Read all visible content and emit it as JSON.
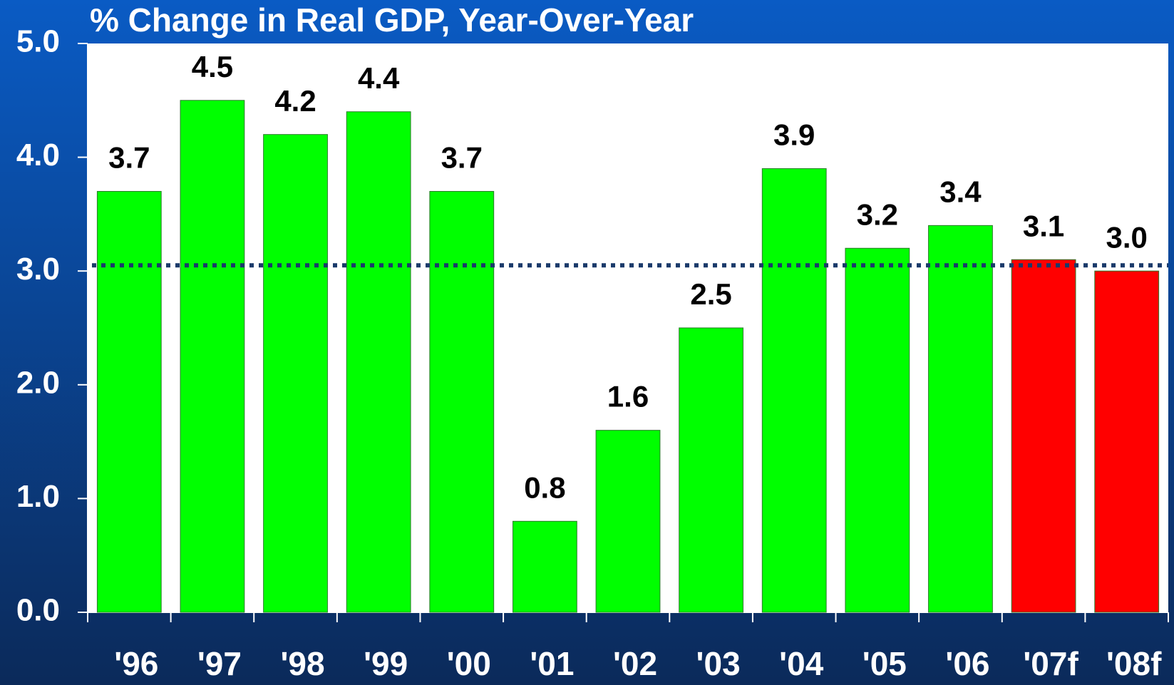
{
  "chart_data": {
    "type": "bar",
    "title": "% Change in Real GDP, Year-Over-Year",
    "categories": [
      "'96",
      "'97",
      "'98",
      "'99",
      "'00",
      "'01",
      "'02",
      "'03",
      "'04",
      "'05",
      "'06",
      "'07f",
      "'08f"
    ],
    "values": [
      3.7,
      4.5,
      4.2,
      4.4,
      3.7,
      0.8,
      1.6,
      2.5,
      3.9,
      3.2,
      3.4,
      3.1,
      3.0
    ],
    "value_labels": [
      "3.7",
      "4.5",
      "4.2",
      "4.4",
      "3.7",
      "0.8",
      "1.6",
      "2.5",
      "3.9",
      "3.2",
      "3.4",
      "3.1",
      "3.0"
    ],
    "colors": [
      "#00ff00",
      "#00ff00",
      "#00ff00",
      "#00ff00",
      "#00ff00",
      "#00ff00",
      "#00ff00",
      "#00ff00",
      "#00ff00",
      "#00ff00",
      "#00ff00",
      "#ff0000",
      "#ff0000"
    ],
    "reference_line": 3.05,
    "ylim": [
      0,
      5
    ],
    "yticks": [
      {
        "value": 0,
        "label": "0.0"
      },
      {
        "value": 1,
        "label": "1.0"
      },
      {
        "value": 2,
        "label": "2.0"
      },
      {
        "value": 3,
        "label": "3.0"
      },
      {
        "value": 4,
        "label": "4.0"
      },
      {
        "value": 5,
        "label": "5.0"
      }
    ]
  }
}
